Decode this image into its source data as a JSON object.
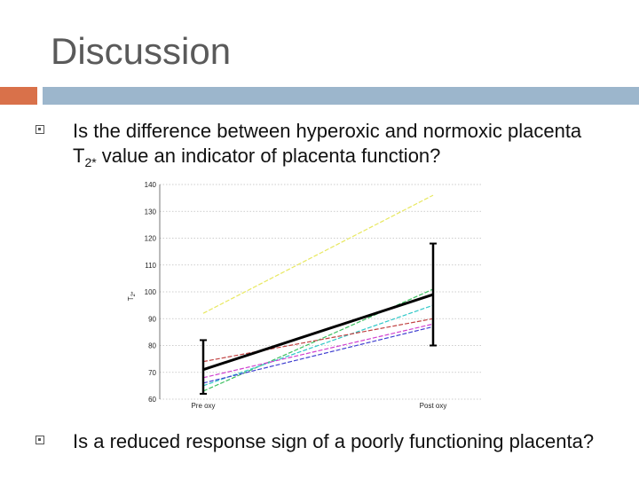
{
  "slide": {
    "title": "Discussion",
    "colors": {
      "orange": "#d9714a",
      "blue": "#9cb6cc",
      "bullet": "#555555"
    },
    "bullets": [
      {
        "pre": "Is the difference between hyperoxic and normoxic placenta T",
        "sub": "2*",
        "post": " value an indicator of placenta function?"
      },
      {
        "text": "Is a reduced response sign of a poorly functioning placenta?"
      }
    ]
  },
  "chart_data": {
    "type": "line",
    "categories": [
      "Pre oxy",
      "Post oxy"
    ],
    "ylabel": "T",
    "ylabel_sub": "2*",
    "ylim": [
      60,
      140
    ],
    "yticks": [
      60,
      70,
      80,
      90,
      100,
      110,
      120,
      130,
      140
    ],
    "grid": true,
    "series": [
      {
        "color": "#e8e860",
        "values": [
          92,
          136
        ]
      },
      {
        "color": "#3cc060",
        "values": [
          63,
          101
        ]
      },
      {
        "color": "#30c8c8",
        "values": [
          65,
          95
        ]
      },
      {
        "color": "#c04040",
        "values": [
          74,
          90
        ]
      },
      {
        "color": "#d040d0",
        "values": [
          68,
          88
        ]
      },
      {
        "color": "#4040d0",
        "values": [
          66,
          87
        ]
      },
      {
        "color": "#000000",
        "width": 3,
        "values": [
          71,
          99
        ]
      }
    ],
    "error_bars": [
      {
        "category": "Pre oxy",
        "low": 62,
        "high": 82
      },
      {
        "category": "Post oxy",
        "low": 80,
        "high": 118
      }
    ]
  }
}
